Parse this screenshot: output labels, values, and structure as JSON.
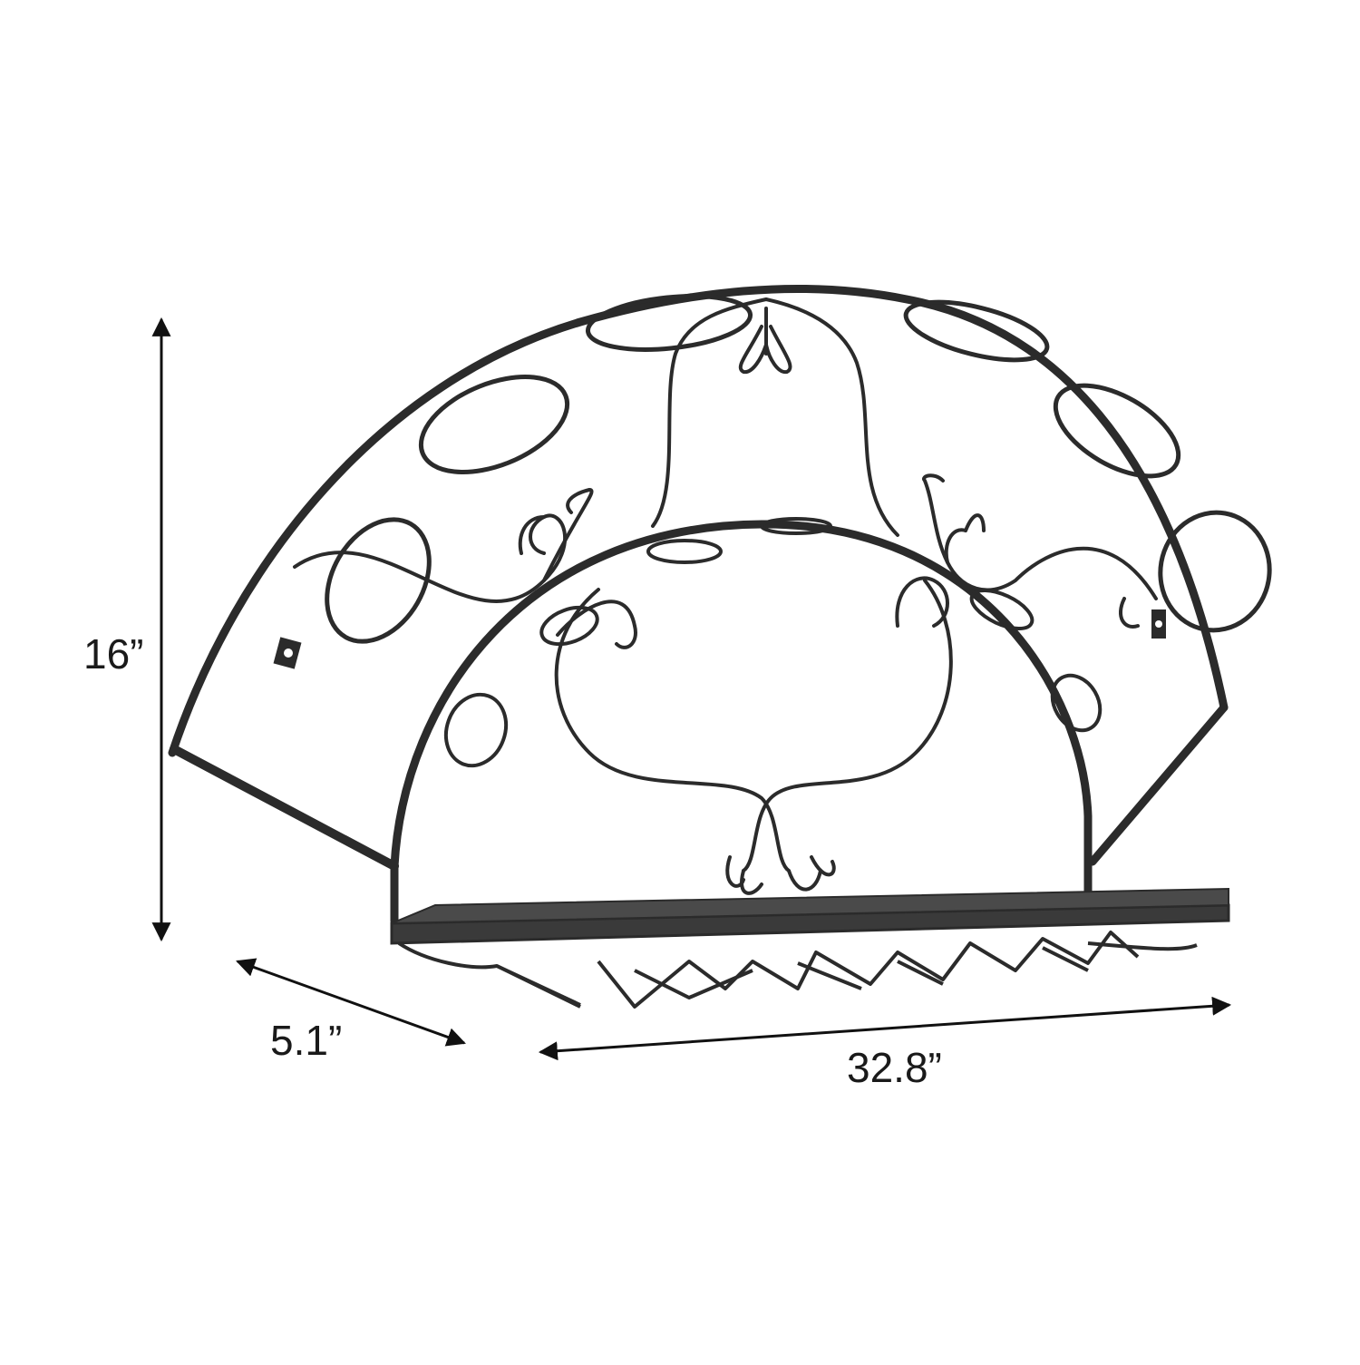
{
  "dimensions": {
    "height": "16”",
    "depth": "5.1”",
    "width": "32.8”"
  },
  "colors": {
    "background": "#ffffff",
    "metal": "#2b2b2b",
    "shelf": "#3a3a3a",
    "dimension_line": "#111111"
  }
}
